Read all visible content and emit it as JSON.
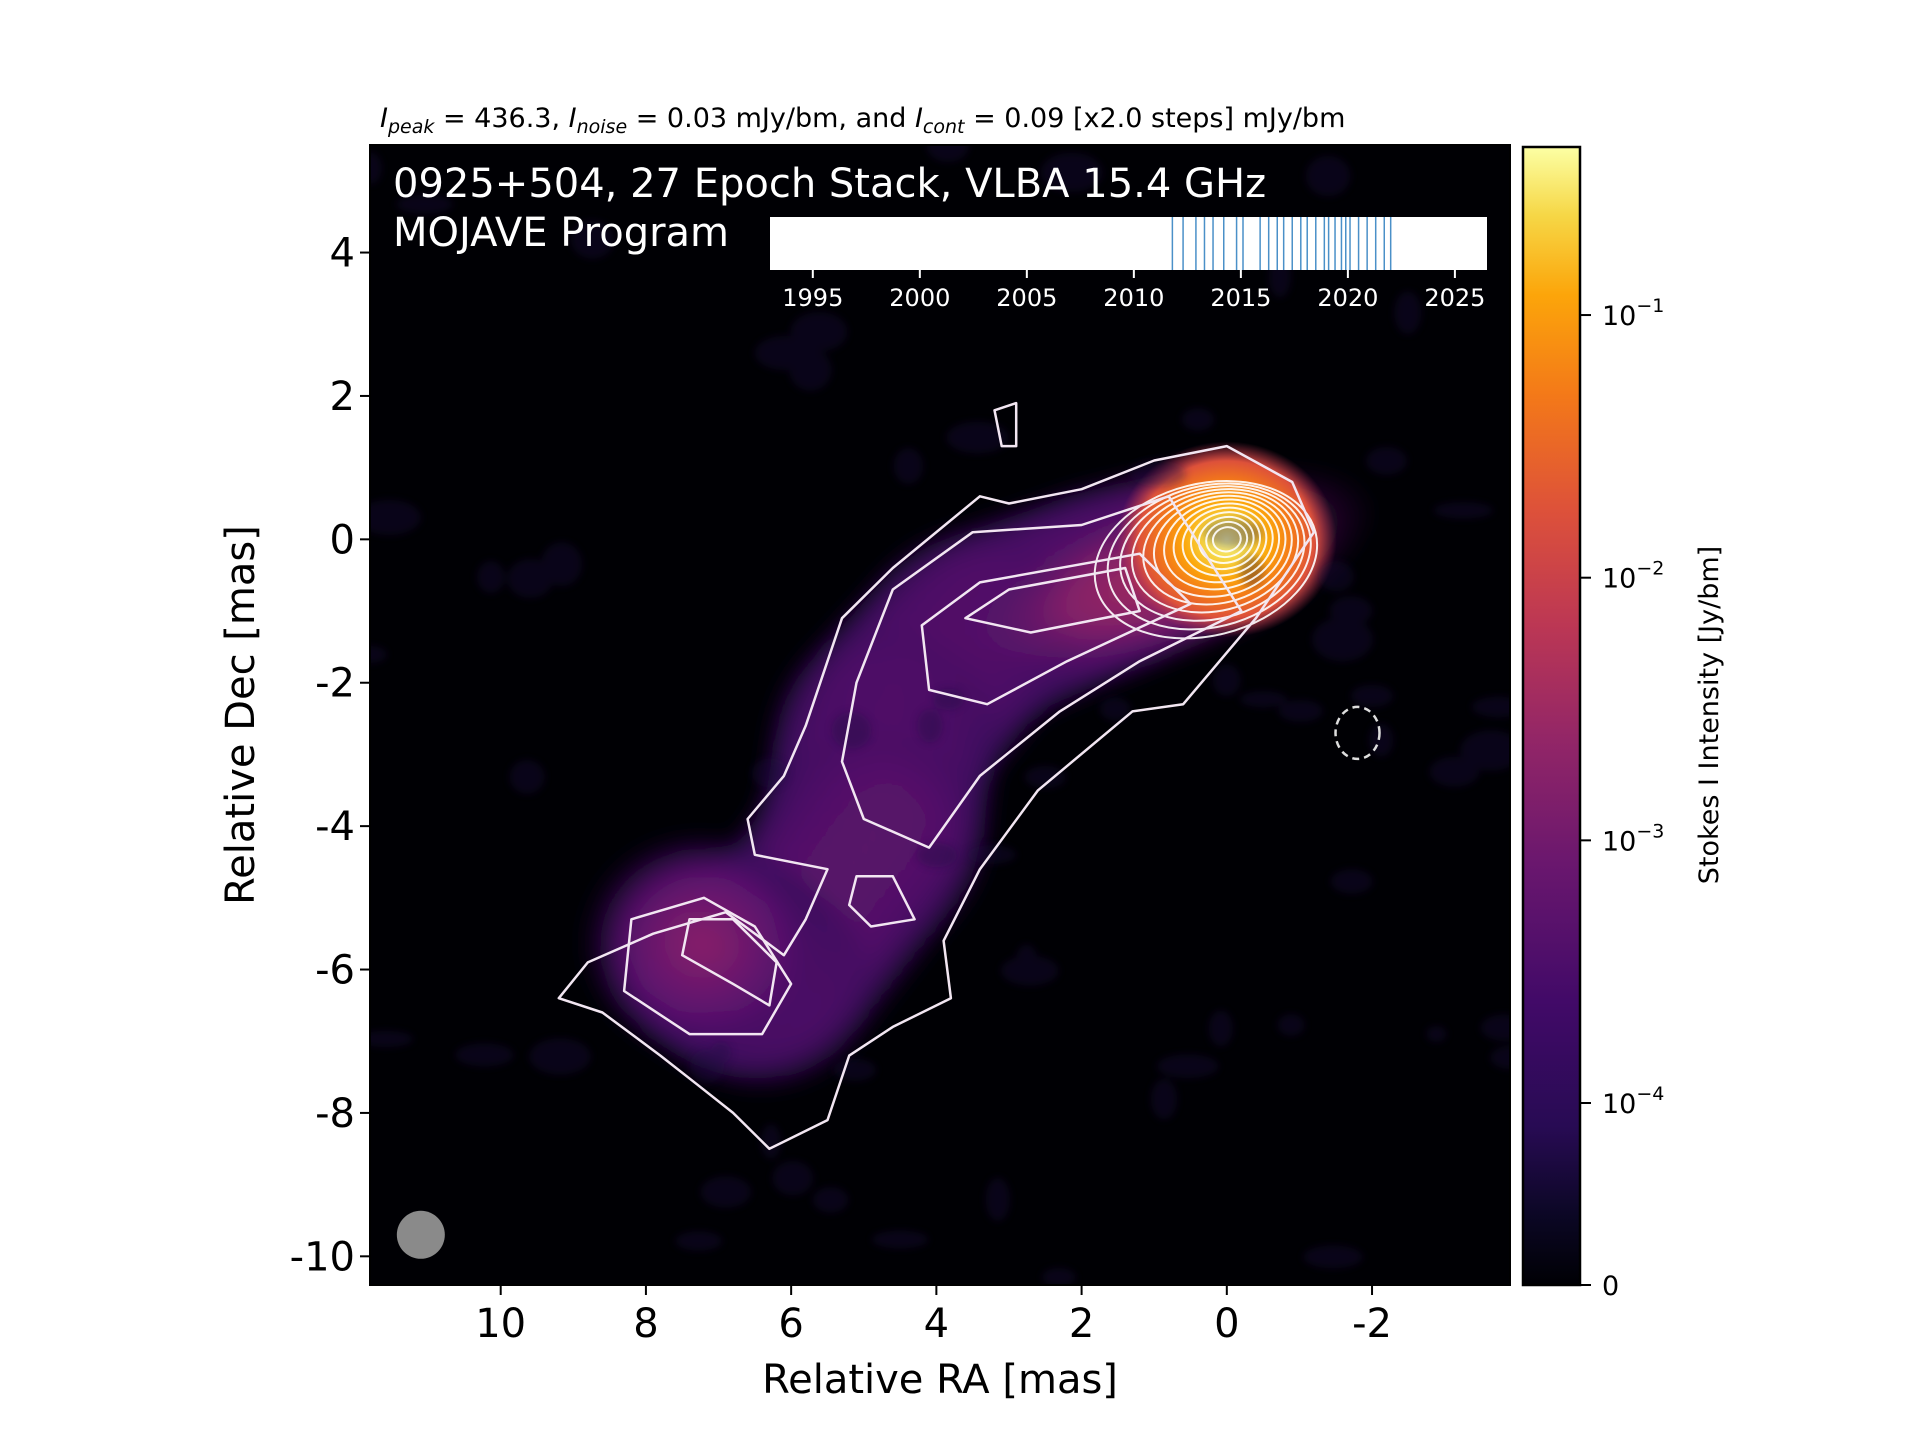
{
  "chart_data": {
    "type": "heatmap",
    "title": {
      "peak_symbol": "I",
      "peak_sub": "peak",
      "peak_value": " = 436.3, ",
      "noise_symbol": "I",
      "noise_sub": "noise",
      "noise_value": " = 0.03 mJy/bm, and ",
      "cont_symbol": "I",
      "cont_sub": "cont",
      "cont_value": " = 0.09 [x2.0 steps] mJy/bm"
    },
    "annotation_line1": "0925+504, 27 Epoch Stack, VLBA 15.4 GHz",
    "annotation_line2": "MOJAVE Program",
    "xlabel": "Relative RA [mas]",
    "ylabel": "Relative Dec [mas]",
    "xlim": [
      11.8,
      -3.9
    ],
    "ylim": [
      -10.4,
      5.5
    ],
    "x_ticks": [
      10,
      8,
      6,
      4,
      2,
      0,
      -2
    ],
    "x_tick_labels": [
      "10",
      "8",
      "6",
      "4",
      "2",
      "0",
      "-2"
    ],
    "y_ticks": [
      4,
      2,
      0,
      -2,
      -4,
      -6,
      -8,
      -10
    ],
    "y_tick_labels": [
      "4",
      "2",
      "0",
      "-2",
      "-4",
      "-6",
      "-8",
      "-10"
    ],
    "colormap": "inferno",
    "colorbar": {
      "label": "Stokes I Intensity [Jy/bm]",
      "scale": "symlog",
      "ticks": [
        {
          "value": 0.1,
          "base": "10",
          "exp": "−1"
        },
        {
          "value": 0.01,
          "base": "10",
          "exp": "−2"
        },
        {
          "value": 0.001,
          "base": "10",
          "exp": "−3"
        },
        {
          "value": 0.0001,
          "base": "10",
          "exp": "−4"
        },
        {
          "value": 0,
          "base": "0",
          "exp": ""
        }
      ]
    },
    "peak_intensity_mJy_per_beam": 436.3,
    "noise_mJy_per_beam": 0.03,
    "lowest_contour_mJy_per_beam": 0.09,
    "contour_step_factor": 2.0,
    "epoch_timeline": {
      "xlim": [
        1993,
        2026.5
      ],
      "ticks": [
        1995,
        2000,
        2005,
        2010,
        2015,
        2020,
        2025
      ],
      "tick_labels": [
        "1995",
        "2000",
        "2005",
        "2010",
        "2015",
        "2020",
        "2025"
      ],
      "epoch_years": [
        2011.8,
        2012.3,
        2012.9,
        2013.3,
        2013.7,
        2014.2,
        2014.8,
        2015.1,
        2015.9,
        2016.3,
        2016.7,
        2017.0,
        2017.4,
        2017.8,
        2018.1,
        2018.5,
        2018.9,
        2019.1,
        2019.4,
        2019.7,
        2019.9,
        2020.1,
        2020.5,
        2020.9,
        2021.3,
        2021.7,
        2022.0
      ],
      "line_color": "#4a90c8"
    },
    "components": [
      {
        "x": 0.0,
        "y": 0.0,
        "peak_Jy_per_beam": 0.4363
      },
      {
        "x": 1.7,
        "y": -0.6,
        "peak_Jy_per_beam": 0.012
      },
      {
        "x": 3.5,
        "y": -1.3,
        "peak_Jy_per_beam": 0.0025
      },
      {
        "x": 4.7,
        "y": -2.7,
        "peak_Jy_per_beam": 0.0009
      },
      {
        "x": 4.9,
        "y": -4.2,
        "peak_Jy_per_beam": 0.0005
      },
      {
        "x": 6.4,
        "y": -6.2,
        "peak_Jy_per_beam": 0.0012
      },
      {
        "x": 7.3,
        "y": -5.6,
        "peak_Jy_per_beam": 0.0008
      }
    ],
    "negative_contour_position": {
      "x": -1.8,
      "y": -2.7
    },
    "beam_position": {
      "x": 11.1,
      "y": -9.7
    }
  }
}
